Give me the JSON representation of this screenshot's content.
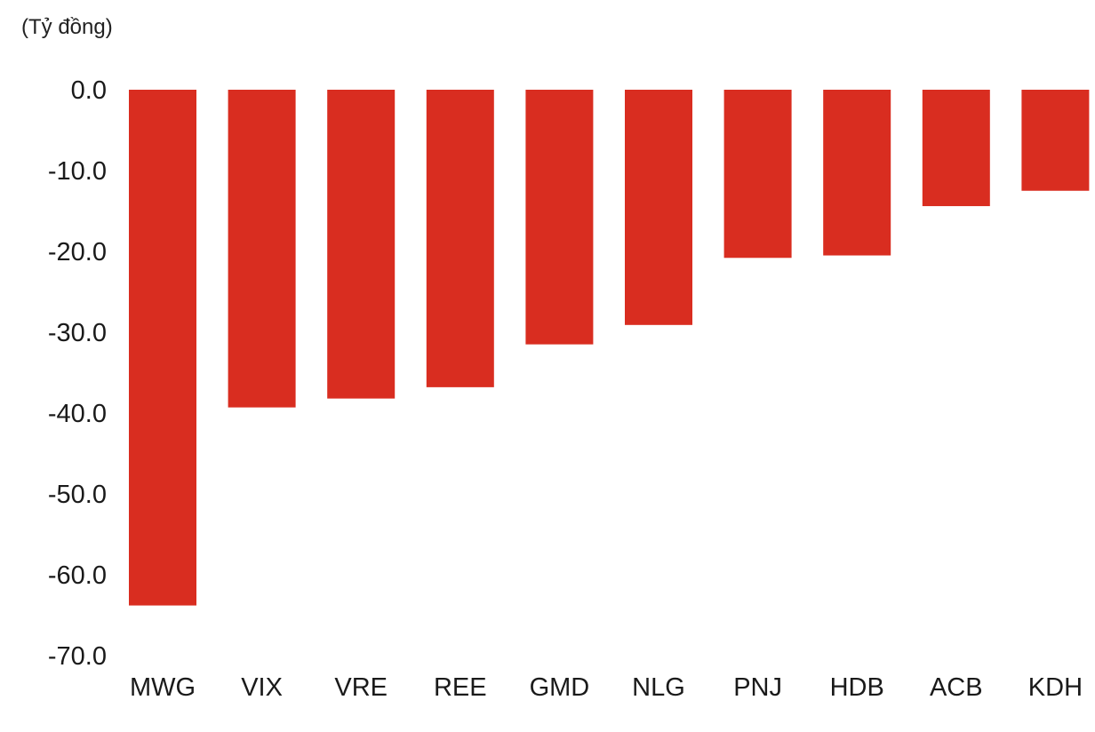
{
  "unit_label": "(Tỷ đồng)",
  "colors": {
    "bar": "#d92d20",
    "text": "#1a1a1a",
    "background": "#ffffff"
  },
  "chart_data": {
    "type": "bar",
    "title": "",
    "xlabel": "",
    "ylabel": "(Tỷ đồng)",
    "categories": [
      "MWG",
      "VIX",
      "VRE",
      "REE",
      "GMD",
      "NLG",
      "PNJ",
      "HDB",
      "ACB",
      "KDH"
    ],
    "values": [
      -63.8,
      -39.3,
      -38.2,
      -36.8,
      -31.5,
      -29.1,
      -20.8,
      -20.5,
      -14.4,
      -12.5
    ],
    "ylim": [
      -70,
      0
    ],
    "yticks": [
      "0.0",
      "-10.0",
      "-20.0",
      "-30.0",
      "-40.0",
      "-50.0",
      "-60.0",
      "-70.0"
    ],
    "ytick_values": [
      0,
      -10,
      -20,
      -30,
      -40,
      -50,
      -60,
      -70
    ],
    "grid": false,
    "legend": "none"
  }
}
